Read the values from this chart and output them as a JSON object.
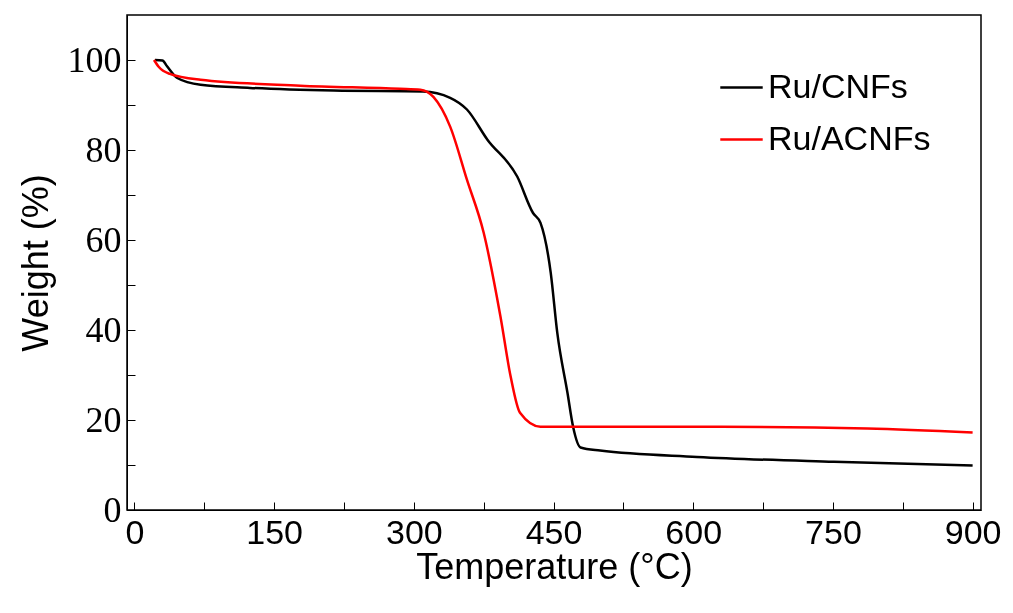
{
  "chart_data": {
    "type": "line",
    "xlabel": "Temperature (°C)",
    "ylabel": "Weight (%)",
    "xlim": [
      -8,
      909
    ],
    "ylim": [
      0,
      110
    ],
    "xticks": [
      0,
      {
        "value": 75,
        "label": null
      },
      150,
      {
        "value": 225,
        "label": null
      },
      300,
      {
        "value": 375,
        "label": null
      },
      450,
      {
        "value": 525,
        "label": null
      },
      600,
      {
        "value": 675,
        "label": null
      },
      750,
      {
        "value": 825,
        "label": null
      },
      900
    ],
    "yticks": [
      0,
      {
        "value": 10,
        "label": null
      },
      20,
      {
        "value": 30,
        "label": null
      },
      40,
      {
        "value": 50,
        "label": null
      },
      60,
      {
        "value": 70,
        "label": null
      },
      80,
      {
        "value": 90,
        "label": null
      },
      100
    ],
    "legend": "top right",
    "series": [
      {
        "name": "Ru/CNFs",
        "color": "#000000",
        "x": [
          22,
          30,
          35,
          46,
          71,
          124,
          214,
          310,
          339,
          357,
          379,
          411,
          428,
          436,
          447,
          454,
          465,
          471,
          479,
          500,
          604,
          751,
          900
        ],
        "values": [
          100,
          99.9,
          98.6,
          96.0,
          94.5,
          93.8,
          93.2,
          93.0,
          91.6,
          89,
          82.3,
          74.1,
          66,
          63.8,
          52.7,
          39.4,
          26,
          18.5,
          13.9,
          13.2,
          11.8,
          10.7,
          9.9
        ]
      },
      {
        "name": "Ru/ACNFs",
        "color": "#ff0000",
        "x": [
          21,
          26,
          38,
          71,
          178,
          285,
          307,
          321,
          339,
          357,
          375,
          393,
          404,
          414,
          436,
          464,
          630,
          787,
          900
        ],
        "values": [
          100,
          98.5,
          96.9,
          95.6,
          94.3,
          93.6,
          93.4,
          91.8,
          85.2,
          73.4,
          61.6,
          43,
          29.6,
          21.6,
          18.5,
          18.5,
          18.5,
          18.1,
          17.2
        ]
      }
    ]
  }
}
